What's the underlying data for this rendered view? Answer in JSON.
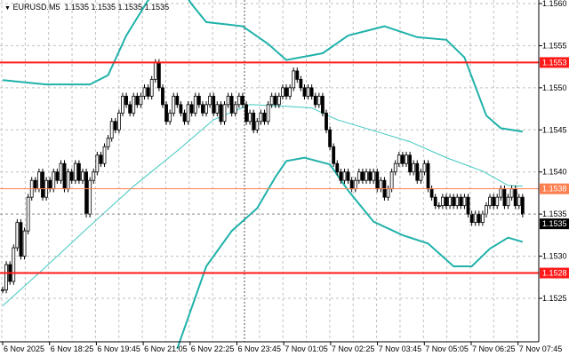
{
  "header": {
    "symbol": "EURUSD.M5",
    "ohlc": "1.1535 1.1535 1.1535 1.1535"
  },
  "chart_data": {
    "type": "candlestick",
    "ylim": [
      1.1519,
      1.156
    ],
    "y_ticks": [
      "1.1560",
      "1.1555",
      "1.1550",
      "1.1545",
      "1.1540",
      "1.1535",
      "1.1530",
      "1.1525"
    ],
    "y_tick_values": [
      1.156,
      1.1555,
      1.155,
      1.1545,
      1.154,
      1.1535,
      1.153,
      1.1525
    ],
    "x_ticks": [
      "6 Nov 2025",
      "6 Nov 18:25",
      "6 Nov 19:45",
      "6 Nov 21:05",
      "6 Nov 22:25",
      "6 Nov 23:45",
      "7 Nov 01:05",
      "7 Nov 02:25",
      "7 Nov 03:45",
      "7 Nov 05:05",
      "7 Nov 06:25",
      "7 Nov 07:45"
    ],
    "grid": true,
    "closes": [
      1.1526,
      1.1529,
      1.1527,
      1.1531,
      1.1534,
      1.153,
      1.1533,
      1.1537,
      1.1539,
      1.1538,
      1.154,
      1.1537,
      1.1539,
      1.1538,
      1.154,
      1.1539,
      1.1541,
      1.1538,
      1.154,
      1.1539,
      1.1541,
      1.1539,
      1.154,
      1.1535,
      1.1539,
      1.154,
      1.1542,
      1.1541,
      1.1543,
      1.1544,
      1.1546,
      1.1545,
      1.1547,
      1.1549,
      1.1548,
      1.1547,
      1.1549,
      1.1548,
      1.1549,
      1.155,
      1.1549,
      1.1551,
      1.1553,
      1.155,
      1.1548,
      1.1546,
      1.1547,
      1.1549,
      1.1548,
      1.1547,
      1.1546,
      1.1548,
      1.1547,
      1.1549,
      1.1548,
      1.1547,
      1.1548,
      1.1549,
      1.1547,
      1.1548,
      1.1546,
      1.1548,
      1.1549,
      1.1547,
      1.1548,
      1.1549,
      1.1548,
      1.1546,
      1.1547,
      1.1545,
      1.1546,
      1.1547,
      1.1546,
      1.1548,
      1.1549,
      1.1548,
      1.1549,
      1.155,
      1.1549,
      1.155,
      1.1552,
      1.1551,
      1.155,
      1.1549,
      1.155,
      1.1549,
      1.1548,
      1.1549,
      1.1547,
      1.1545,
      1.1543,
      1.1541,
      1.154,
      1.1539,
      1.154,
      1.1539,
      1.1538,
      1.1539,
      1.154,
      1.1539,
      1.154,
      1.1539,
      1.154,
      1.1538,
      1.1539,
      1.1537,
      1.1538,
      1.154,
      1.1541,
      1.1542,
      1.1541,
      1.1542,
      1.154,
      1.1541,
      1.1539,
      1.154,
      1.1541,
      1.1538,
      1.1537,
      1.1536,
      1.1536,
      1.1537,
      1.1536,
      1.1537,
      1.1536,
      1.1537,
      1.1536,
      1.1537,
      1.1535,
      1.1534,
      1.1535,
      1.1534,
      1.1535,
      1.1536,
      1.1537,
      1.1536,
      1.1537,
      1.1538,
      1.1536,
      1.1537,
      1.1538,
      1.1536,
      1.1537,
      1.1535
    ],
    "bands": {
      "upper": [
        [
          0,
          1.15509
        ],
        [
          12,
          1.15504
        ],
        [
          24,
          1.15504
        ],
        [
          29,
          1.15515
        ],
        [
          34,
          1.15562
        ],
        [
          40,
          1.15604
        ],
        [
          48,
          1.15625
        ],
        [
          52,
          1.15599
        ],
        [
          56,
          1.15578
        ],
        [
          66,
          1.15573
        ],
        [
          73,
          1.15552
        ],
        [
          78,
          1.15533
        ],
        [
          88,
          1.15541
        ],
        [
          95,
          1.15562
        ],
        [
          105,
          1.15573
        ],
        [
          114,
          1.1556
        ],
        [
          122,
          1.15557
        ],
        [
          127,
          1.15536
        ],
        [
          133,
          1.15467
        ],
        [
          137,
          1.15452
        ],
        [
          143,
          1.15448
        ]
      ],
      "middle": [
        [
          0,
          1.15241
        ],
        [
          12,
          1.15288
        ],
        [
          24,
          1.15336
        ],
        [
          36,
          1.15383
        ],
        [
          48,
          1.15425
        ],
        [
          58,
          1.15462
        ],
        [
          68,
          1.1548
        ],
        [
          78,
          1.15478
        ],
        [
          85,
          1.15476
        ],
        [
          92,
          1.15462
        ],
        [
          102,
          1.15449
        ],
        [
          112,
          1.15436
        ],
        [
          122,
          1.15417
        ],
        [
          132,
          1.15401
        ],
        [
          139,
          1.15384
        ],
        [
          143,
          1.15383
        ]
      ],
      "lower": [
        [
          48,
          1.1519
        ],
        [
          56,
          1.15288
        ],
        [
          63,
          1.1533
        ],
        [
          70,
          1.15357
        ],
        [
          75,
          1.15394
        ],
        [
          78,
          1.15413
        ],
        [
          83,
          1.15417
        ],
        [
          90,
          1.15409
        ],
        [
          95,
          1.15378
        ],
        [
          102,
          1.15341
        ],
        [
          110,
          1.15325
        ],
        [
          117,
          1.15315
        ],
        [
          124,
          1.15288
        ],
        [
          129,
          1.15288
        ],
        [
          134,
          1.15309
        ],
        [
          139,
          1.15322
        ],
        [
          143,
          1.15317
        ]
      ]
    },
    "levels": [
      {
        "label": "1.1553",
        "value": 1.1553,
        "color": "#ff1a1a"
      },
      {
        "label": "1.1538",
        "value": 1.1538,
        "color": "#ff7f50"
      },
      {
        "label": "1.1528",
        "value": 1.1528,
        "color": "#ff1a1a"
      }
    ],
    "current_price": {
      "label": "1.1535",
      "value": 1.1535
    },
    "colors": {
      "band": "#20b2aa",
      "middle": "#40c8c0",
      "candle": "#000000",
      "grid": "#c0c0c0"
    }
  }
}
